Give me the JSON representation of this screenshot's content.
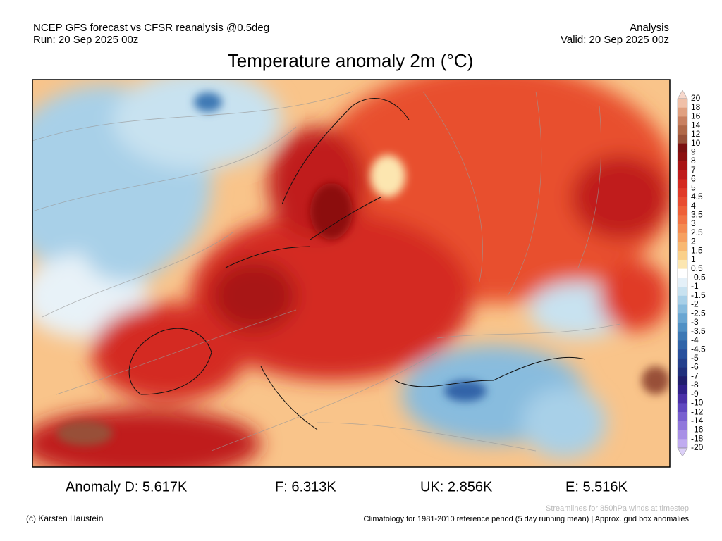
{
  "header": {
    "line1": "NCEP GFS forecast vs CFSR reanalysis @0.5deg",
    "line2": "Run: 20 Sep 2025 00z",
    "right1": "Analysis",
    "right2": "Valid: 20 Sep 2025 00z",
    "title": "Temperature anomaly 2m (°C)"
  },
  "colorbar": {
    "labels": [
      "20",
      "18",
      "16",
      "14",
      "12",
      "10",
      "9",
      "8",
      "7",
      "6",
      "5",
      "4.5",
      "4",
      "3.5",
      "3",
      "2.5",
      "2",
      "1.5",
      "1",
      "0.5",
      "-0.5",
      "-1",
      "-1.5",
      "-2",
      "-2.5",
      "-3",
      "-3.5",
      "-4",
      "-4.5",
      "-5",
      "-6",
      "-7",
      "-8",
      "-9",
      "-10",
      "-12",
      "-14",
      "-16",
      "-18",
      "-20"
    ],
    "colors": [
      "#f7d8cc",
      "#f0c0a8",
      "#e0a080",
      "#c88060",
      "#b06848",
      "#985038",
      "#7a1010",
      "#8c1010",
      "#a81414",
      "#c01c1c",
      "#d42a20",
      "#e03a28",
      "#e84c30",
      "#ee6038",
      "#f27444",
      "#f48a50",
      "#f6a060",
      "#f8b872",
      "#fad08a",
      "#fce6b0",
      "#ffffff",
      "#e4f0f8",
      "#c8e2f0",
      "#a8d0e8",
      "#88bcde",
      "#6aa6d2",
      "#5090c4",
      "#3c78b4",
      "#3064a8",
      "#28509c",
      "#24408c",
      "#20307c",
      "#201e6c",
      "#30208a",
      "#4a30a8",
      "#6048c0",
      "#7860d0",
      "#9078dc",
      "#a890e6",
      "#c0acf0",
      "#dcd0f8"
    ]
  },
  "anomalies": [
    "Anomaly D: 5.617K",
    "F: 6.313K",
    "UK: 2.856K",
    "E: 5.516K"
  ],
  "footer": {
    "streamlines": "Streamlines for 850hPa winds at timestep",
    "credit": "(c) Karsten Haustein",
    "climatology": "Climatology for 1981-2010 reference period (5 day running mean) | Approx. grid box anomalies"
  }
}
